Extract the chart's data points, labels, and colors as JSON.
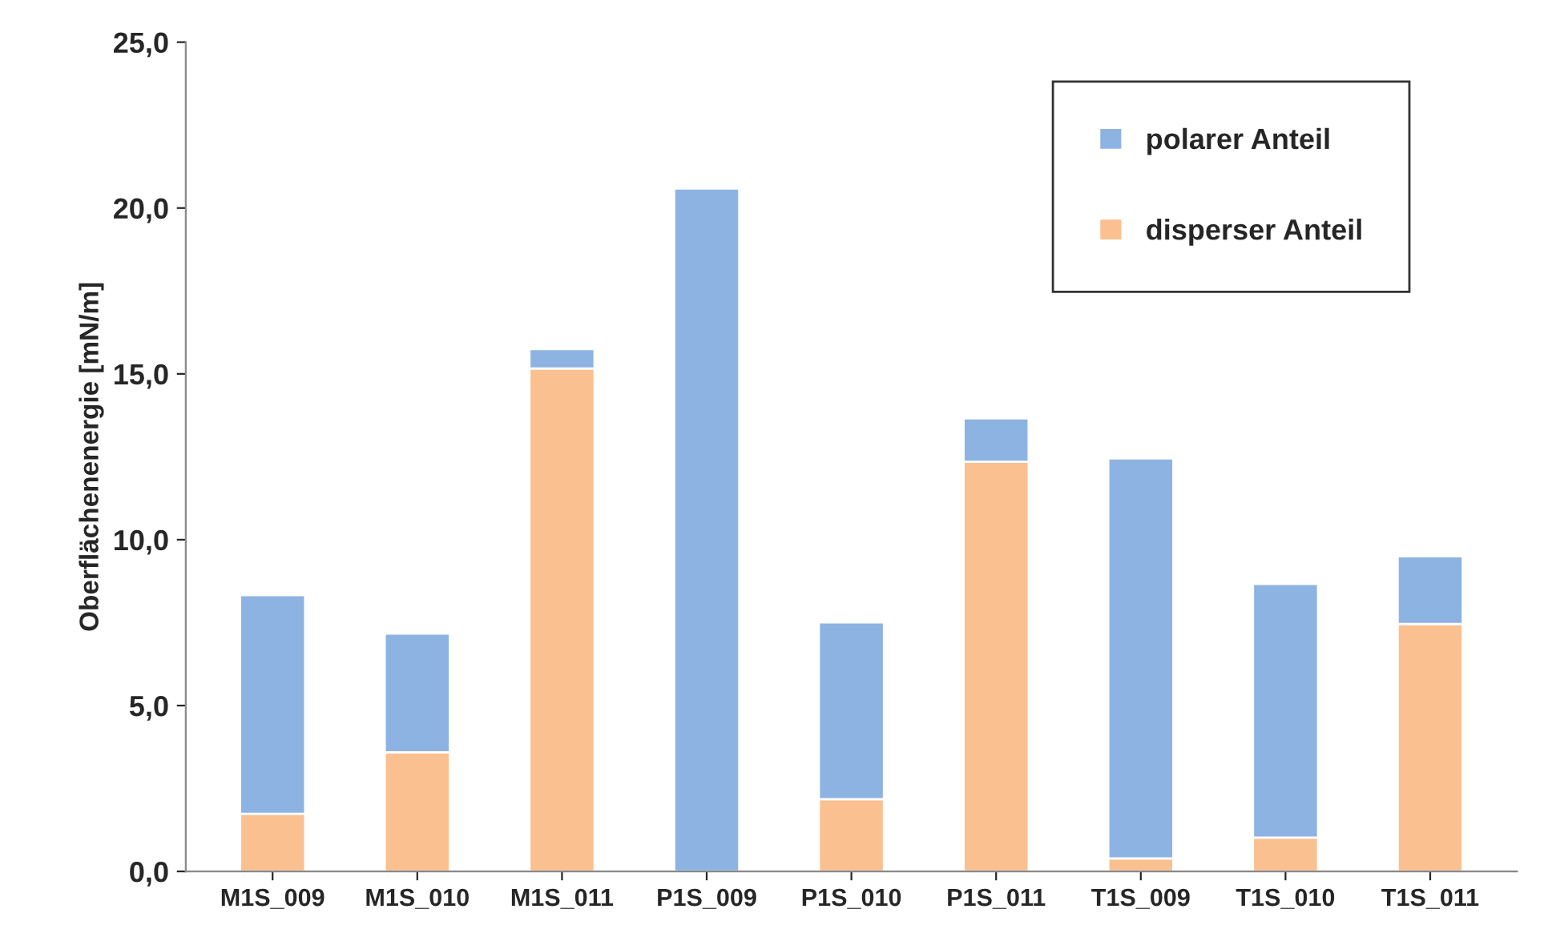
{
  "chart_data": {
    "type": "bar",
    "stacked": true,
    "ylabel": "Oberflächenenergie [mN/m]",
    "categories": [
      "M1S_009",
      "M1S_010",
      "M1S_011",
      "P1S_009",
      "P1S_010",
      "P1S_011",
      "T1S_009",
      "T1S_010",
      "T1S_011"
    ],
    "series": [
      {
        "name": "disperser Anteil",
        "color": "#fac090",
        "values": [
          1.74,
          3.59,
          15.16,
          0,
          2.18,
          12.35,
          0.39,
          1.02,
          7.46
        ]
      },
      {
        "name": "polarer Anteil",
        "color": "#8db3e2",
        "values": [
          6.59,
          3.58,
          0.59,
          20.59,
          5.33,
          1.31,
          12.06,
          7.65,
          2.04
        ]
      }
    ],
    "ylim": [
      0,
      25
    ],
    "yticks": [
      {
        "value": 0,
        "label": "0,0"
      },
      {
        "value": 5,
        "label": "5,0"
      },
      {
        "value": 10,
        "label": "10,0"
      },
      {
        "value": 15,
        "label": "15,0"
      },
      {
        "value": 20,
        "label": "20,0"
      },
      {
        "value": 25,
        "label": "25,0"
      }
    ],
    "grid": false,
    "legend": "top right"
  }
}
